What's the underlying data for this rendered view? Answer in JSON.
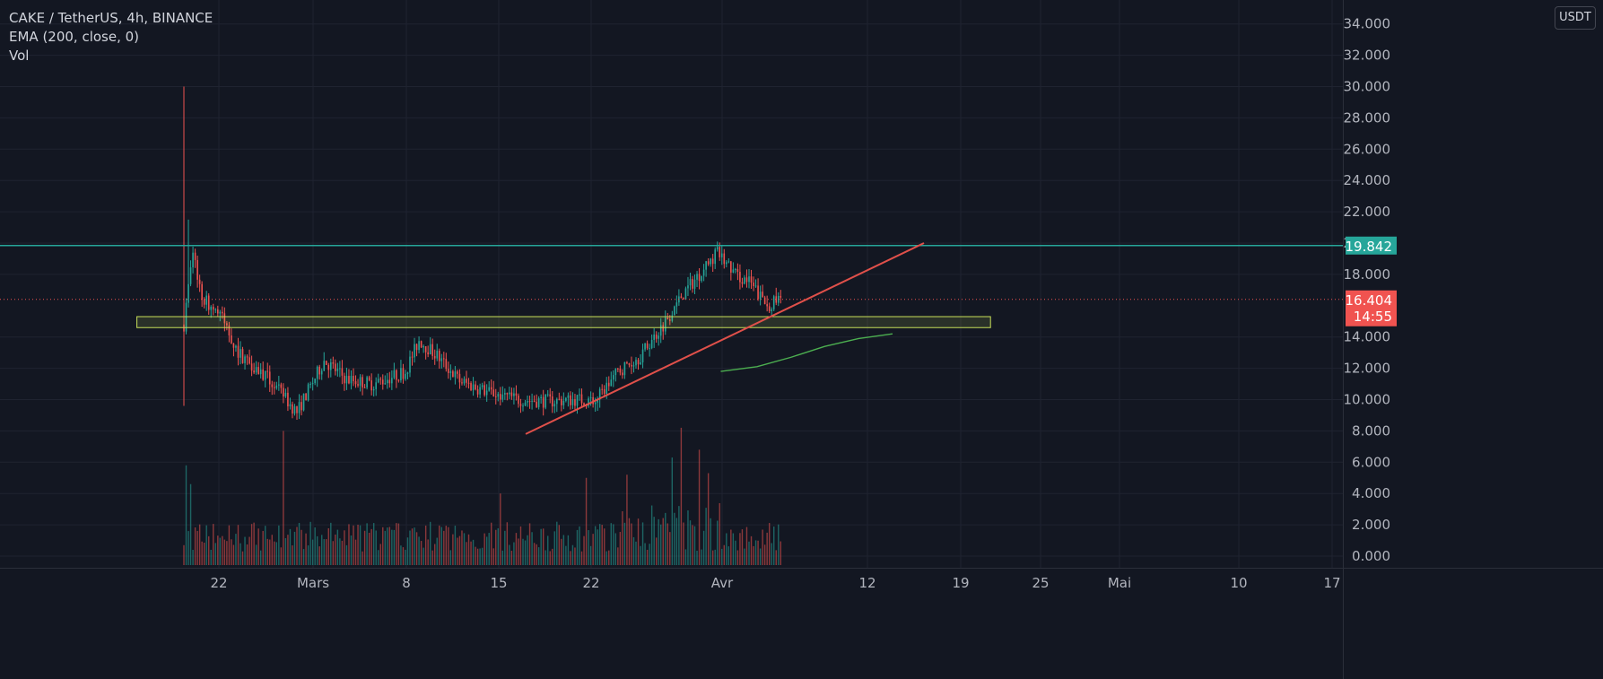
{
  "legend": {
    "symbol": "CAKE / TetherUS, 4h, BINANCE",
    "indicator1": "EMA (200, close, 0)",
    "indicator2": "Vol"
  },
  "currency_unit": "USDT",
  "colors": {
    "background": "#131722",
    "grid": "#1f2330",
    "up": "#26a69a",
    "down": "#ef5350",
    "resistance_line": "#26a69a",
    "trendline": "#e0504a",
    "support_zone_border": "#c8e05a",
    "ema": "#4caf50",
    "current_price": "#f05350"
  },
  "chart_data": {
    "type": "candlestick",
    "instrument": "CAKE / TetherUS",
    "timeframe": "4h",
    "exchange": "BINANCE",
    "y_ticks": [
      "0.000",
      "2.000",
      "4.000",
      "6.000",
      "8.000",
      "10.000",
      "12.000",
      "14.000",
      "18.000",
      "20.000",
      "22.000",
      "24.000",
      "26.000",
      "28.000",
      "30.000",
      "32.000",
      "34.000"
    ],
    "ylim": [
      0,
      34.5
    ],
    "x_ticks": [
      "22",
      "Mars",
      "8",
      "15",
      "22",
      "Avr",
      "12",
      "19",
      "25",
      "Mai",
      "10",
      "17"
    ],
    "price_path": [
      [
        0,
        14.8
      ],
      [
        4,
        19.5
      ],
      [
        8,
        16.5
      ],
      [
        16,
        15.5
      ],
      [
        24,
        13.0
      ],
      [
        30,
        12.3
      ],
      [
        38,
        11.2
      ],
      [
        50,
        9.2
      ],
      [
        62,
        12.5
      ],
      [
        72,
        11.3
      ],
      [
        84,
        11.0
      ],
      [
        98,
        11.8
      ],
      [
        104,
        13.8
      ],
      [
        112,
        12.8
      ],
      [
        122,
        11.2
      ],
      [
        134,
        10.5
      ],
      [
        148,
        10.0
      ],
      [
        162,
        9.9
      ],
      [
        174,
        10.0
      ],
      [
        182,
        9.9
      ],
      [
        192,
        11.8
      ],
      [
        202,
        12.8
      ],
      [
        212,
        14.8
      ],
      [
        220,
        16.6
      ],
      [
        228,
        18.0
      ],
      [
        236,
        19.4
      ],
      [
        244,
        18.0
      ],
      [
        250,
        17.5
      ],
      [
        258,
        16.0
      ],
      [
        264,
        16.4
      ]
    ],
    "volume_spikes": [
      [
        1,
        5.8
      ],
      [
        3,
        4.6
      ],
      [
        44,
        8.0
      ],
      [
        140,
        4.0
      ],
      [
        178,
        5.0
      ],
      [
        196,
        5.2
      ],
      [
        216,
        6.3
      ],
      [
        220,
        8.2
      ],
      [
        228,
        6.8
      ],
      [
        232,
        5.3
      ]
    ],
    "ema_200": [
      [
        174,
        11.8
      ],
      [
        190,
        12.1
      ],
      [
        205,
        12.7
      ],
      [
        220,
        13.4
      ],
      [
        235,
        13.9
      ],
      [
        250,
        14.2
      ]
    ],
    "price_lines": [
      {
        "label": "19.842",
        "value": 19.842
      },
      {
        "label": "16.404",
        "value": 16.404,
        "countdown": "14:55"
      }
    ],
    "support_zone": {
      "low": 14.6,
      "high": 15.3,
      "start_bar": -20,
      "end_bar": 335
    },
    "trendline": {
      "start": [
        115,
        7.8
      ],
      "end": [
        310,
        20.0
      ]
    }
  }
}
